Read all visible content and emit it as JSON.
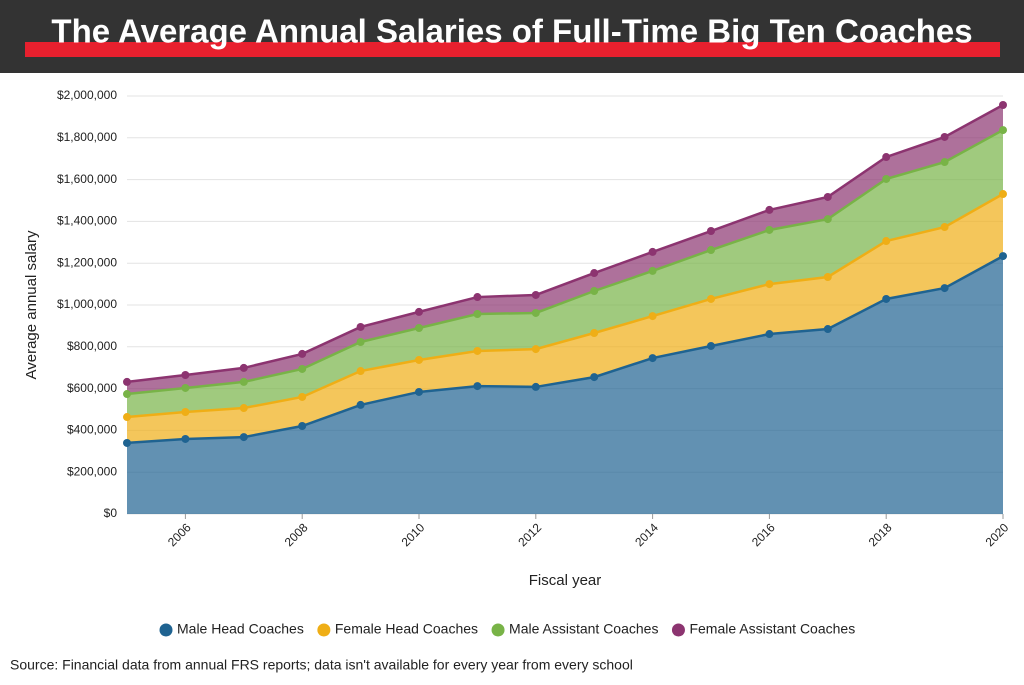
{
  "chart_data": {
    "type": "stacked_area",
    "title": "The Average Annual Salaries of Full-Time Big Ten Coaches",
    "x_label": "Fiscal year",
    "y_label": "Average annual salary",
    "source": "Source: Financial data from annual FRS reports; data isn't available for every year from every school",
    "x": [
      2005,
      2006,
      2007,
      2008,
      2009,
      2010,
      2011,
      2012,
      2013,
      2014,
      2015,
      2016,
      2017,
      2018,
      2019,
      2020
    ],
    "xlim": [
      2005,
      2020
    ],
    "xticks": [
      2006,
      2008,
      2010,
      2012,
      2014,
      2016,
      2018,
      2020
    ],
    "ylim": [
      0,
      2000000
    ],
    "yticks": [
      {
        "value": 0,
        "label": "$0"
      },
      {
        "value": 200000,
        "label": "$200,000"
      },
      {
        "value": 400000,
        "label": "$400,000"
      },
      {
        "value": 600000,
        "label": "$600,000"
      },
      {
        "value": 800000,
        "label": "$800,000"
      },
      {
        "value": 1000000,
        "label": "$1,000,000"
      },
      {
        "value": 1200000,
        "label": "$1,200,000"
      },
      {
        "value": 1400000,
        "label": "$1,400,000"
      },
      {
        "value": 1600000,
        "label": "$1,600,000"
      },
      {
        "value": 1800000,
        "label": "$1,800,000"
      },
      {
        "value": 2000000,
        "label": "$2,000,000"
      }
    ],
    "grid": true,
    "legend": "bottom",
    "series": [
      {
        "name": "Male Head Coaches",
        "color": "#1f6391",
        "values": [
          340000,
          359000,
          368000,
          421000,
          522000,
          584000,
          612000,
          608000,
          655000,
          746000,
          804000,
          861000,
          885000,
          1029000,
          1081000,
          1234000
        ]
      },
      {
        "name": "Female Head Coaches",
        "color": "#efae16",
        "values": [
          124000,
          129000,
          139000,
          139000,
          162000,
          153000,
          168000,
          181000,
          211000,
          201000,
          225000,
          239000,
          249000,
          277000,
          292000,
          297000
        ]
      },
      {
        "name": "Male Assistant Coaches",
        "color": "#78b347",
        "values": [
          110000,
          115000,
          125000,
          134000,
          139000,
          153000,
          177000,
          173000,
          201000,
          216000,
          234000,
          259000,
          277000,
          297000,
          311000,
          306000
        ]
      },
      {
        "name": "Female Assistant Coaches",
        "color": "#8c3470",
        "values": [
          58000,
          62000,
          67000,
          72000,
          72000,
          77000,
          81000,
          86000,
          86000,
          91000,
          91000,
          96000,
          106000,
          105000,
          120000,
          120000
        ]
      }
    ]
  }
}
